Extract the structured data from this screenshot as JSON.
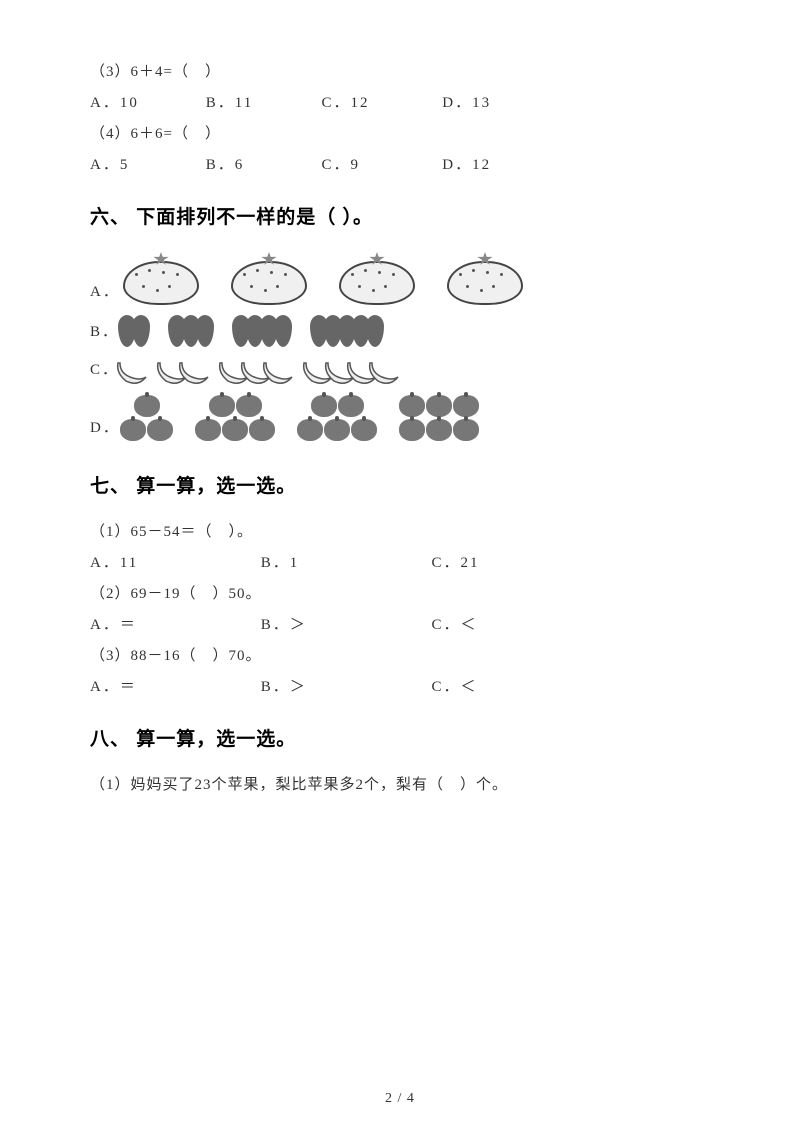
{
  "q3": {
    "label": "（3）6＋4=（　）",
    "opts": {
      "a": "A．10",
      "b": "B．11",
      "c": "C．12",
      "d": "D．13"
    }
  },
  "q4": {
    "label": "（4）6＋6=（　）",
    "opts": {
      "a": "A．5",
      "b": "B．6",
      "c": "C．9",
      "d": "D．12"
    }
  },
  "section6": {
    "title": "六、 下面排列不一样的是（ ）。",
    "rows": {
      "a": {
        "label": "A．",
        "type": "orange",
        "counts": [
          1,
          1,
          1,
          1
        ]
      },
      "b": {
        "label": "B．",
        "type": "berry",
        "counts": [
          2,
          3,
          4,
          5
        ]
      },
      "c": {
        "label": "C．",
        "type": "banana",
        "counts": [
          1,
          2,
          3,
          4
        ]
      },
      "d": {
        "label": "D．",
        "type": "apple",
        "counts": [
          3,
          5,
          5,
          6
        ]
      }
    }
  },
  "section7": {
    "title": "七、 算一算，选一选。",
    "q1": {
      "label": "（1）65－54＝（　）。",
      "opts": {
        "a": "A．11",
        "b": "B．1",
        "c": "C．21"
      }
    },
    "q2": {
      "label": "（2）69－19（　）50。",
      "opts": {
        "a": "A．＝",
        "b": "B．＞",
        "c": "C．＜"
      }
    },
    "q3": {
      "label": "（3）88－16（　）70。",
      "opts": {
        "a": "A．＝",
        "b": "B．＞",
        "c": "C．＜"
      }
    }
  },
  "section8": {
    "title": "八、 算一算，选一选。",
    "q1": {
      "label": "（1）妈妈买了23个苹果，梨比苹果多2个，梨有（　）个。"
    }
  },
  "pageNum": "2 / 4",
  "colors": {
    "text": "#333333",
    "orangeFill": "#f0f0f0",
    "orangeBorder": "#444444",
    "berry": "#666666",
    "apple": "#777777",
    "bg": "#ffffff"
  }
}
